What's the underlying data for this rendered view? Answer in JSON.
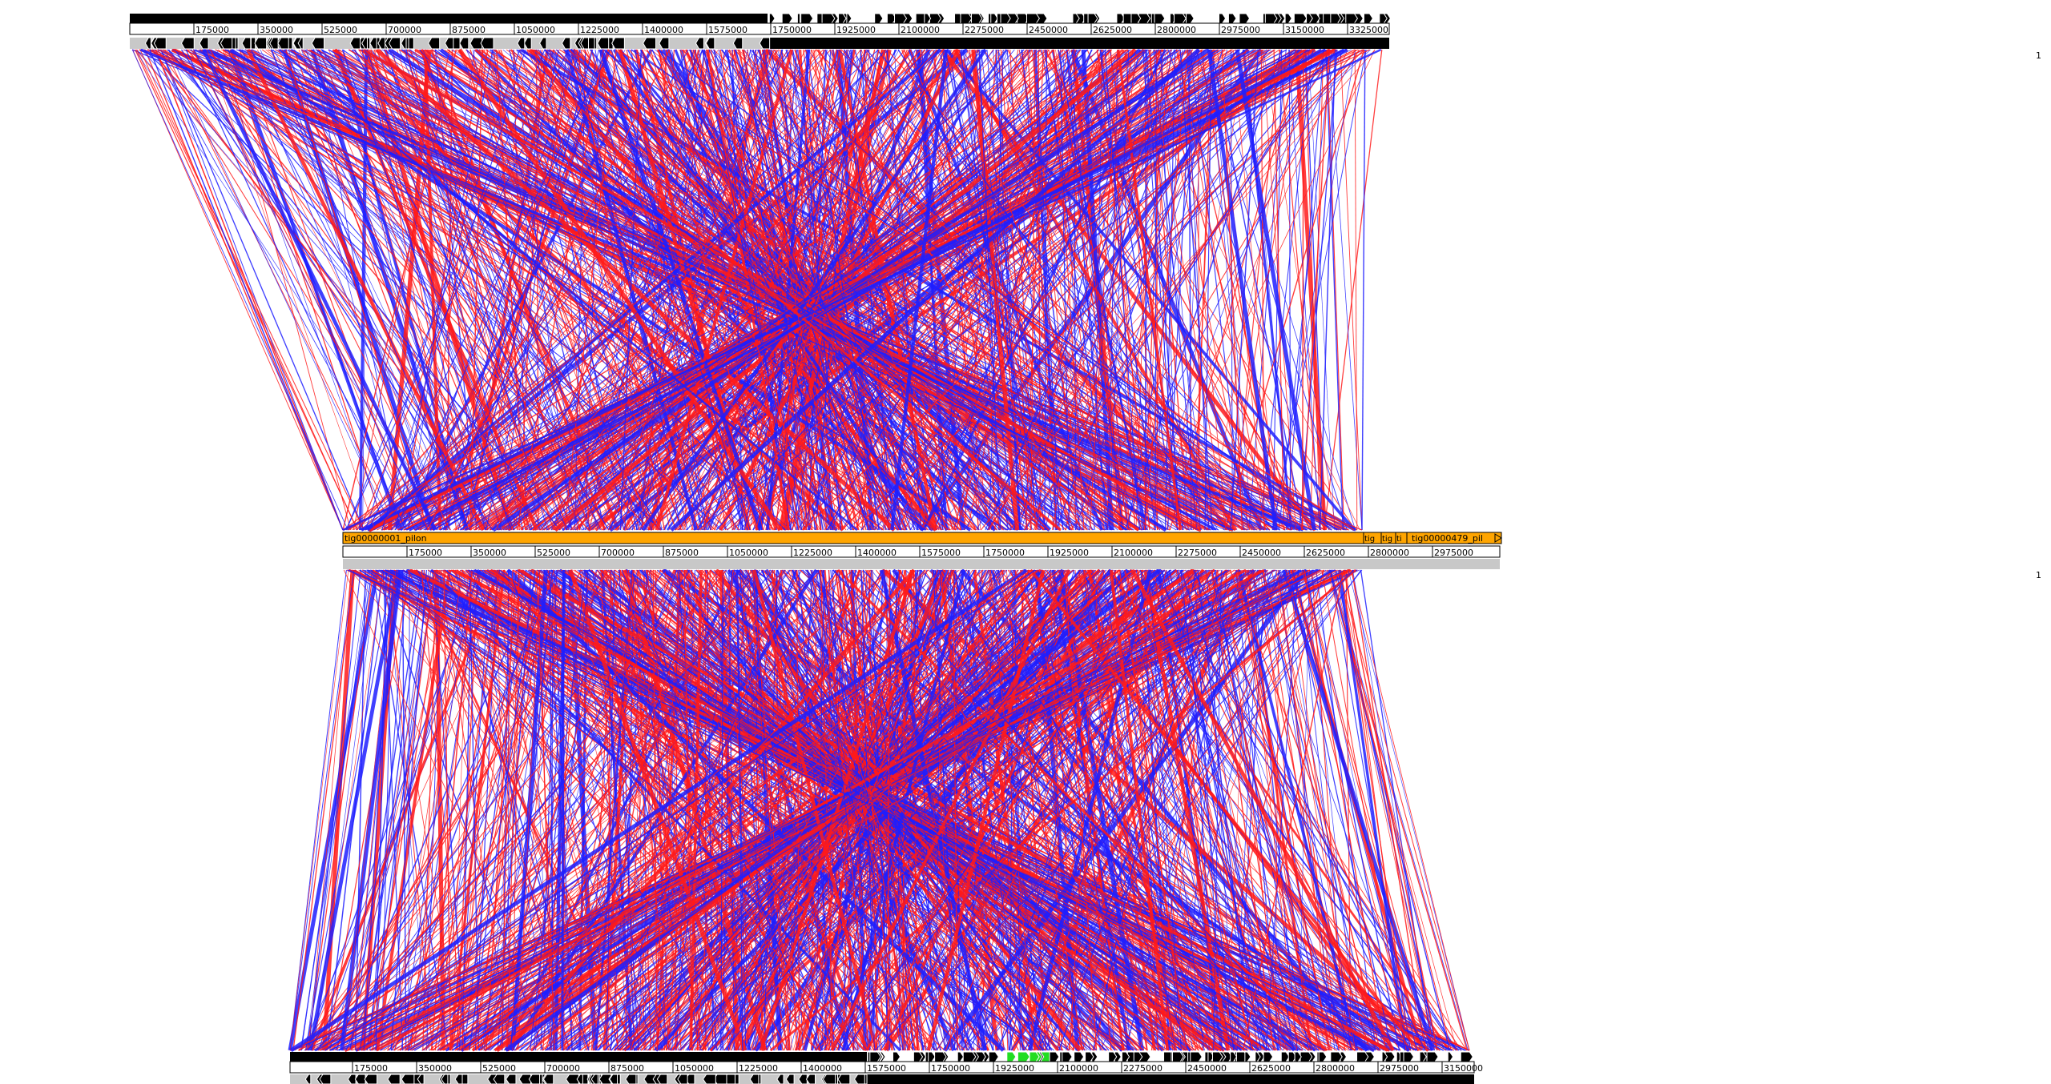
{
  "colors": {
    "forward_match": "#ff1a1a",
    "reverse_match": "#1f1fff",
    "feature_black": "#000000",
    "feature_green": "#22dd22",
    "contig_orange": "#ffa500",
    "track_grey": "#c8c8c8",
    "background": "#ffffff"
  },
  "genomes": [
    {
      "id": "top",
      "ticks": [
        "175000",
        "350000",
        "525000",
        "700000",
        "875000",
        "1050000",
        "1225000",
        "1400000",
        "1575000",
        "1750000",
        "1925000",
        "2100000",
        "2275000",
        "2450000",
        "2625000",
        "2800000",
        "2975000",
        "3150000",
        "3325000"
      ]
    },
    {
      "id": "middle",
      "contigs": [
        {
          "label": "tig00000001_pilon"
        },
        {
          "label": "tig"
        },
        {
          "label": "tig"
        },
        {
          "label": "ti"
        },
        {
          "label": "tig00000479_pil"
        }
      ],
      "ticks": [
        "175000",
        "350000",
        "525000",
        "700000",
        "875000",
        "1050000",
        "1225000",
        "1400000",
        "1575000",
        "1750000",
        "1925000",
        "2100000",
        "2275000",
        "2450000",
        "2625000",
        "2800000",
        "2975000"
      ]
    },
    {
      "id": "bottom",
      "ticks": [
        "175000",
        "350000",
        "525000",
        "700000",
        "875000",
        "1050000",
        "1225000",
        "1400000",
        "1575000",
        "1750000",
        "1925000",
        "2100000",
        "2275000",
        "2450000",
        "2625000",
        "2800000",
        "2975000",
        "3150000"
      ]
    }
  ],
  "scale_labels": [
    "1",
    "1"
  ]
}
